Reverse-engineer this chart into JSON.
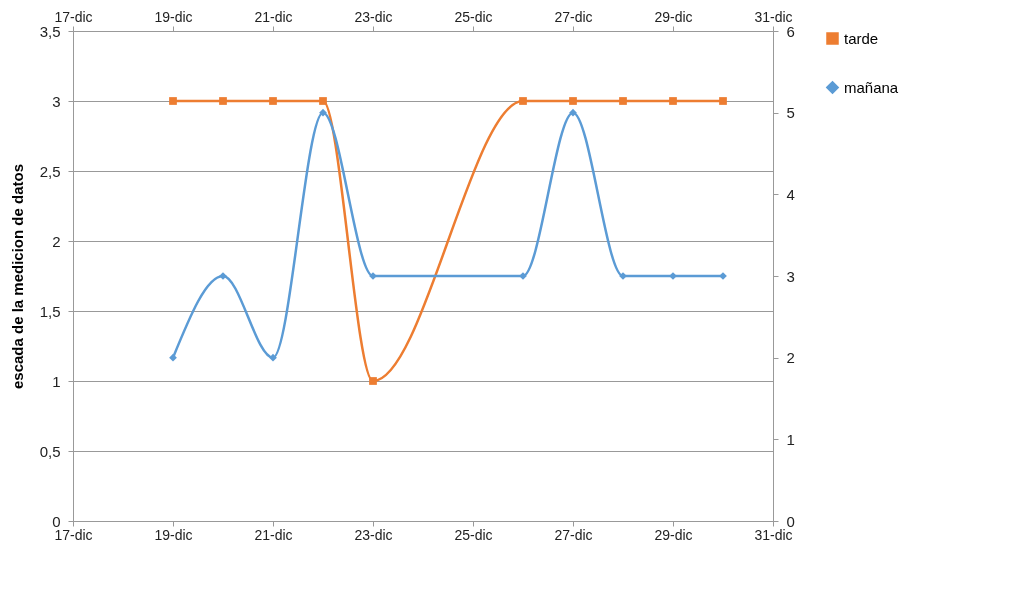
{
  "chart_data": {
    "type": "line",
    "ylabel": "escada de la medicion de datos",
    "x": [
      "--12-19",
      "--12-20",
      "--12-21",
      "--12-22",
      "--12-23",
      "--12-26",
      "--12-27",
      "--12-28",
      "--12-29",
      "--12-30"
    ],
    "series": [
      {
        "name": "tarde",
        "color": "#ed7d31",
        "marker": "square",
        "values": [
          3,
          3,
          3,
          3,
          1,
          3,
          3,
          3,
          3,
          3
        ]
      },
      {
        "name": "mañana",
        "color": "#5b9bd5",
        "marker": "diamond",
        "axis": "y2",
        "values": [
          2,
          3,
          2,
          5,
          3,
          3,
          5,
          3,
          3,
          3
        ]
      }
    ],
    "xlim": [
      "--12-17",
      "--12-31"
    ],
    "xticks": [
      {
        "value": "--12-17",
        "label": "17-dic"
      },
      {
        "value": "--12-19",
        "label": "19-dic"
      },
      {
        "value": "--12-21",
        "label": "21-dic"
      },
      {
        "value": "--12-23",
        "label": "23-dic"
      },
      {
        "value": "--12-25",
        "label": "25-dic"
      },
      {
        "value": "--12-27",
        "label": "27-dic"
      },
      {
        "value": "--12-29",
        "label": "29-dic"
      },
      {
        "value": "--12-31",
        "label": "31-dic"
      }
    ],
    "x2lim": [
      "--12-17",
      "--12-31"
    ],
    "x2ticks": [
      {
        "value": "--12-17",
        "label": "17-dic"
      },
      {
        "value": "--12-19",
        "label": "19-dic"
      },
      {
        "value": "--12-21",
        "label": "21-dic"
      },
      {
        "value": "--12-23",
        "label": "23-dic"
      },
      {
        "value": "--12-25",
        "label": "25-dic"
      },
      {
        "value": "--12-27",
        "label": "27-dic"
      },
      {
        "value": "--12-29",
        "label": "29-dic"
      },
      {
        "value": "--12-31",
        "label": "31-dic"
      }
    ],
    "ylim": [
      0,
      3.5
    ],
    "yticks": [
      {
        "value": 0,
        "label": "0"
      },
      {
        "value": 0.5,
        "label": "0,5"
      },
      {
        "value": 1,
        "label": "1"
      },
      {
        "value": 1.5,
        "label": "1,5"
      },
      {
        "value": 2,
        "label": "2"
      },
      {
        "value": 2.5,
        "label": "2,5"
      },
      {
        "value": 3,
        "label": "3"
      },
      {
        "value": 3.5,
        "label": "3,5"
      }
    ],
    "y2lim": [
      0,
      6
    ],
    "y2ticks": [
      0,
      1,
      2,
      3,
      4,
      5,
      6
    ],
    "grid": "y",
    "legend": "right",
    "line_style": "solid"
  }
}
